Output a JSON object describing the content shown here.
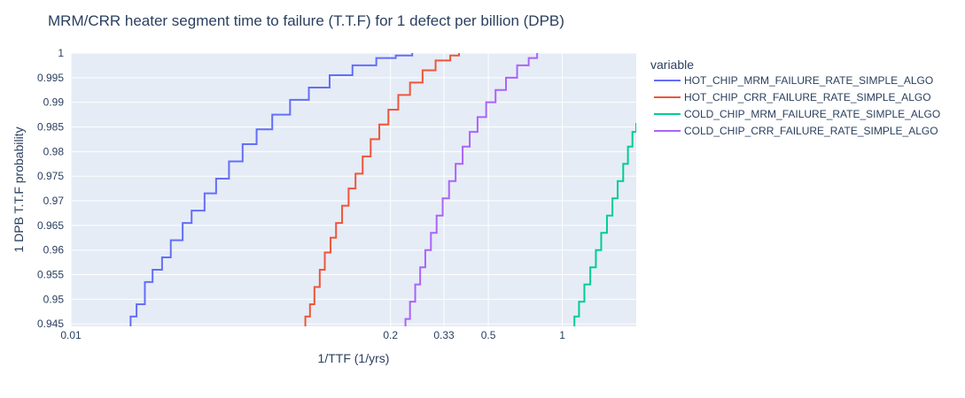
{
  "chart_data": {
    "type": "line",
    "title": "MRM/CRR heater segment time to failure (T.T.F) for 1 defect per billion (DPB)",
    "xlabel": "1/TTF (1/yrs)",
    "ylabel": "1 DPB T.T.F probability",
    "x_scale": "log",
    "xlim": [
      0.01,
      2.0
    ],
    "ylim": [
      0.9445,
      1.0
    ],
    "x_ticks": [
      0.01,
      0.2,
      0.33,
      0.5,
      1
    ],
    "x_tick_labels": [
      "0.01",
      "0.2",
      "0.33",
      "0.5",
      "1"
    ],
    "y_ticks": [
      0.945,
      0.95,
      0.955,
      0.96,
      0.965,
      0.97,
      0.975,
      0.98,
      0.985,
      0.99,
      0.995,
      1
    ],
    "y_tick_labels": [
      "0.945",
      "0.95",
      "0.955",
      "0.96",
      "0.965",
      "0.97",
      "0.975",
      "0.98",
      "0.985",
      "0.99",
      "0.995",
      "1"
    ],
    "legend_title": "variable",
    "legend_position": "right",
    "grid": true,
    "plot_bgcolor": "#E5ECF6",
    "series": [
      {
        "name": "HOT_CHIP_MRM_FAILURE_RATE_SIMPLE_ALGO",
        "color": "#636EFA",
        "points": [
          [
            0.0175,
            0.9445
          ],
          [
            0.0175,
            0.9465
          ],
          [
            0.0185,
            0.949
          ],
          [
            0.02,
            0.9535
          ],
          [
            0.0215,
            0.956
          ],
          [
            0.0235,
            0.9585
          ],
          [
            0.0255,
            0.962
          ],
          [
            0.0285,
            0.9655
          ],
          [
            0.031,
            0.968
          ],
          [
            0.035,
            0.9715
          ],
          [
            0.039,
            0.9745
          ],
          [
            0.044,
            0.978
          ],
          [
            0.05,
            0.9815
          ],
          [
            0.057,
            0.9845
          ],
          [
            0.066,
            0.9875
          ],
          [
            0.078,
            0.9905
          ],
          [
            0.093,
            0.993
          ],
          [
            0.113,
            0.9955
          ],
          [
            0.14,
            0.9975
          ],
          [
            0.175,
            0.999
          ],
          [
            0.21,
            0.9995
          ],
          [
            0.245,
            1.0
          ]
        ]
      },
      {
        "name": "HOT_CHIP_CRR_FAILURE_RATE_SIMPLE_ALGO",
        "color": "#EF553B",
        "points": [
          [
            0.09,
            0.9445
          ],
          [
            0.09,
            0.9465
          ],
          [
            0.094,
            0.949
          ],
          [
            0.098,
            0.9525
          ],
          [
            0.103,
            0.956
          ],
          [
            0.108,
            0.9595
          ],
          [
            0.114,
            0.9625
          ],
          [
            0.12,
            0.9655
          ],
          [
            0.127,
            0.969
          ],
          [
            0.135,
            0.9725
          ],
          [
            0.144,
            0.9755
          ],
          [
            0.154,
            0.979
          ],
          [
            0.166,
            0.9825
          ],
          [
            0.18,
            0.9855
          ],
          [
            0.196,
            0.9885
          ],
          [
            0.215,
            0.9915
          ],
          [
            0.24,
            0.994
          ],
          [
            0.27,
            0.9965
          ],
          [
            0.305,
            0.9985
          ],
          [
            0.35,
            0.9995
          ],
          [
            0.38,
            1.0
          ]
        ]
      },
      {
        "name": "COLD_CHIP_MRM_FAILURE_RATE_SIMPLE_ALGO",
        "color": "#00CC96",
        "points": [
          [
            1.12,
            0.9445
          ],
          [
            1.12,
            0.9465
          ],
          [
            1.17,
            0.9495
          ],
          [
            1.23,
            0.953
          ],
          [
            1.3,
            0.9565
          ],
          [
            1.37,
            0.96
          ],
          [
            1.44,
            0.9635
          ],
          [
            1.52,
            0.967
          ],
          [
            1.6,
            0.9705
          ],
          [
            1.68,
            0.974
          ],
          [
            1.77,
            0.9775
          ],
          [
            1.85,
            0.981
          ],
          [
            1.93,
            0.984
          ],
          [
            2.0,
            0.9858
          ]
        ]
      },
      {
        "name": "COLD_CHIP_CRR_FAILURE_RATE_SIMPLE_ALGO",
        "color": "#AB63FA",
        "points": [
          [
            0.23,
            0.9445
          ],
          [
            0.23,
            0.946
          ],
          [
            0.24,
            0.9495
          ],
          [
            0.252,
            0.953
          ],
          [
            0.264,
            0.9565
          ],
          [
            0.277,
            0.96
          ],
          [
            0.292,
            0.9635
          ],
          [
            0.308,
            0.967
          ],
          [
            0.326,
            0.9705
          ],
          [
            0.346,
            0.974
          ],
          [
            0.368,
            0.9775
          ],
          [
            0.393,
            0.981
          ],
          [
            0.42,
            0.984
          ],
          [
            0.452,
            0.987
          ],
          [
            0.49,
            0.99
          ],
          [
            0.535,
            0.9925
          ],
          [
            0.59,
            0.995
          ],
          [
            0.655,
            0.9975
          ],
          [
            0.73,
            0.999
          ],
          [
            0.79,
            1.0
          ]
        ]
      }
    ]
  }
}
